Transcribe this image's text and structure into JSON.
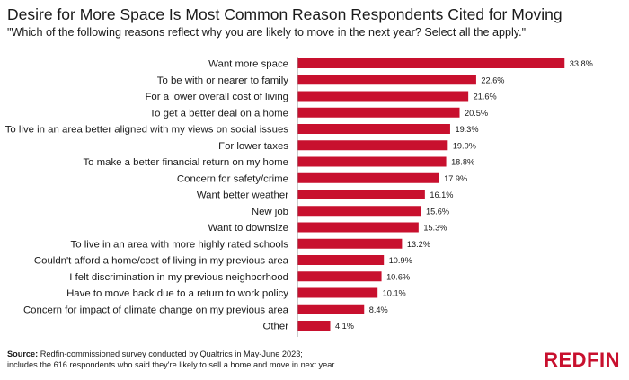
{
  "header": {
    "title": "Desire for More Space Is Most Common Reason Respondents Cited for Moving",
    "subtitle": "\"Which of the following reasons reflect why you are likely to move in the next year? Select all the apply.\""
  },
  "footer": {
    "source_label": "Source:",
    "source_line1": " Redfin-commissioned survey conducted by Qualtrics in May-June 2023;",
    "source_line2": "includes the 616 respondents who said they're likely to sell a home and move in next year",
    "brand": "REDFIN"
  },
  "colors": {
    "bar": "#c8102e"
  },
  "chart_data": {
    "type": "bar",
    "orientation": "horizontal",
    "categories": [
      "Want more space",
      "To be with or nearer to family",
      "For a lower overall cost of living",
      "To get a better deal on a home",
      "To live in an area better aligned with my views on social issues",
      "For lower taxes",
      "To make a better financial return on my home",
      "Concern for safety/crime",
      "Want better weather",
      "New job",
      "Want to downsize",
      "To live in an area with more highly rated schools",
      "Couldn't afford a home/cost of living in my previous area",
      "I felt discrimination in my previous neighborhood",
      "Have to move back due to a return to work policy",
      "Concern for impact of climate change on my previous area",
      "Other"
    ],
    "values": [
      33.8,
      22.6,
      21.6,
      20.5,
      19.3,
      19.0,
      18.8,
      17.9,
      16.1,
      15.6,
      15.3,
      13.2,
      10.9,
      10.6,
      10.1,
      8.4,
      4.1
    ],
    "labels": [
      "33.8%",
      "22.6%",
      "21.6%",
      "20.5%",
      "19.3%",
      "19.0%",
      "18.8%",
      "17.9%",
      "16.1%",
      "15.6%",
      "15.3%",
      "13.2%",
      "10.9%",
      "10.6%",
      "10.1%",
      "8.4%",
      "4.1%"
    ],
    "unit": "%",
    "grid": false,
    "legend": "none"
  }
}
